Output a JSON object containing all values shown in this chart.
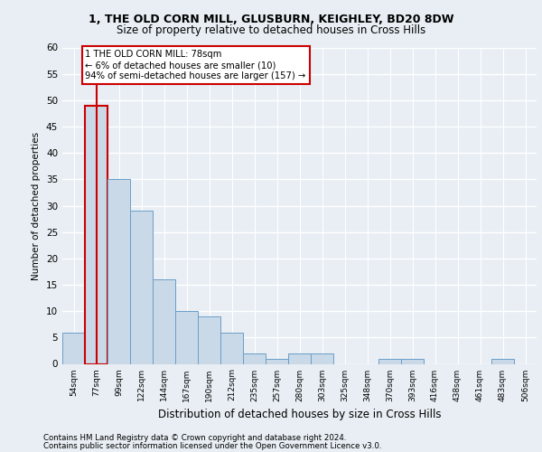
{
  "title1": "1, THE OLD CORN MILL, GLUSBURN, KEIGHLEY, BD20 8DW",
  "title2": "Size of property relative to detached houses in Cross Hills",
  "xlabel": "Distribution of detached houses by size in Cross Hills",
  "ylabel": "Number of detached properties",
  "categories": [
    "54sqm",
    "77sqm",
    "99sqm",
    "122sqm",
    "144sqm",
    "167sqm",
    "190sqm",
    "212sqm",
    "235sqm",
    "257sqm",
    "280sqm",
    "303sqm",
    "325sqm",
    "348sqm",
    "370sqm",
    "393sqm",
    "416sqm",
    "438sqm",
    "461sqm",
    "483sqm",
    "506sqm"
  ],
  "values": [
    6,
    49,
    35,
    29,
    16,
    10,
    9,
    6,
    2,
    1,
    2,
    2,
    0,
    0,
    1,
    1,
    0,
    0,
    0,
    1,
    0
  ],
  "bar_color": "#c9d9e8",
  "bar_edge_color": "#6b9ec8",
  "highlight_bar_edge_color": "#cc0000",
  "ylim": [
    0,
    60
  ],
  "yticks": [
    0,
    5,
    10,
    15,
    20,
    25,
    30,
    35,
    40,
    45,
    50,
    55,
    60
  ],
  "annotation_text": "1 THE OLD CORN MILL: 78sqm\n← 6% of detached houses are smaller (10)\n94% of semi-detached houses are larger (157) →",
  "annotation_box_color": "#ffffff",
  "annotation_box_edge_color": "#cc0000",
  "footer1": "Contains HM Land Registry data © Crown copyright and database right 2024.",
  "footer2": "Contains public sector information licensed under the Open Government Licence v3.0.",
  "bg_color": "#e8eef4",
  "grid_color": "#ffffff",
  "red_line_x": 1.0
}
